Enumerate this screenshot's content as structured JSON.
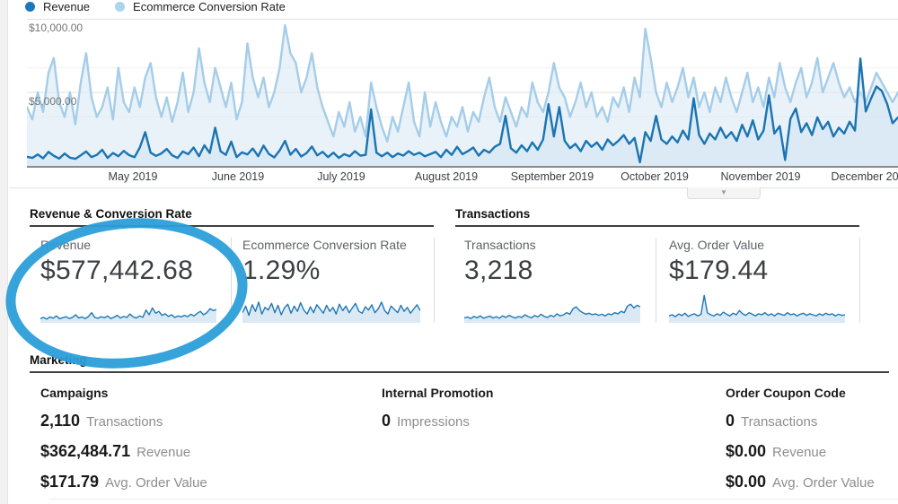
{
  "accent_colors": {
    "revenue_blue": "#1b74b1",
    "conversion_light_blue": "#a5cde9",
    "spark_fill": "#d7e7f4",
    "annotation_blue": "#2b9fd9"
  },
  "chart_collapse": {
    "icon": "chevron-down"
  },
  "chart_data": [
    {
      "id": "main",
      "type": "line",
      "title": "",
      "x_tick_labels": [
        "May 2019",
        "June 2019",
        "July 2019",
        "August 2019",
        "September 2019",
        "October 2019",
        "November 2019",
        "December 2019"
      ],
      "x_tick_pos": [
        118,
        235,
        350,
        467,
        585,
        699,
        817,
        940
      ],
      "left_axis": {
        "min": 0,
        "max": 10000,
        "tick_labels": [
          "$5,000.00",
          "$10,000.00"
        ],
        "gridlines": [
          5000,
          10000
        ]
      },
      "right_axis": {
        "min": 0,
        "max": 3,
        "gridlines": [
          1,
          2
        ]
      },
      "grid": "on",
      "legend_position": "top-left",
      "series": [
        {
          "name": "Revenue",
          "axis": "left",
          "color": "#1b74b1",
          "fill": "#cfe3f3",
          "fill_opacity": 0.55,
          "values": [
            620,
            540,
            780,
            520,
            950,
            690,
            500,
            840,
            560,
            480,
            720,
            980,
            600,
            750,
            1100,
            540,
            880,
            660,
            1020,
            730,
            590,
            1250,
            2300,
            900,
            680,
            850,
            1150,
            720,
            540,
            980,
            800,
            1250,
            660,
            1400,
            880,
            2600,
            1000,
            750,
            1650,
            600,
            920,
            780,
            1180,
            660,
            1380,
            820,
            580,
            1050,
            1700,
            760,
            1150,
            640,
            880,
            1320,
            720,
            960,
            600,
            900,
            550,
            800,
            650,
            1000,
            700,
            750,
            3850,
            900,
            650,
            900,
            600,
            850,
            700,
            1000,
            750,
            900,
            650,
            800,
            950,
            600,
            1100,
            750,
            1300,
            800,
            1000,
            1250,
            700,
            1100,
            900,
            1300,
            1500,
            3400,
            1200,
            900,
            1400,
            1000,
            1600,
            1100,
            1800,
            4200,
            2000,
            4000,
            1700,
            1200,
            1500,
            1000,
            1700,
            1300,
            1600,
            1100,
            1800,
            1400,
            1700,
            2100,
            1500,
            1900,
            250,
            2300,
            1700,
            3400,
            1800,
            1500,
            2000,
            1600,
            2400,
            1800,
            4600,
            2100,
            1500,
            2200,
            1800,
            2600,
            1900,
            2300,
            1700,
            2800,
            2000,
            3100,
            1800,
            2400,
            4800,
            2200,
            2700,
            400,
            3200,
            3900,
            2300,
            2900,
            2100,
            3300,
            2500,
            3000,
            2000,
            2600,
            2200,
            3000,
            2400,
            7300,
            3700,
            4600,
            5400,
            5100,
            4200,
            2900,
            3300
          ]
        },
        {
          "name": "Ecommerce Conversion Rate",
          "axis": "right",
          "color": "#a5cde9",
          "fill": "#dbe9f4",
          "fill_opacity": 0.6,
          "values": [
            1.2,
            0.95,
            1.5,
            1.1,
            1.9,
            2.2,
            1.3,
            1.0,
            1.5,
            0.85,
            1.7,
            2.3,
            1.4,
            1.0,
            1.2,
            1.6,
            0.95,
            2.0,
            1.3,
            1.1,
            1.6,
            1.2,
            1.8,
            2.1,
            1.4,
            1.0,
            1.4,
            0.9,
            1.3,
            1.9,
            1.1,
            1.5,
            2.4,
            1.7,
            1.3,
            2.0,
            1.6,
            1.2,
            1.7,
            0.95,
            1.3,
            2.5,
            1.8,
            1.4,
            1.8,
            1.2,
            1.5,
            2.0,
            2.87,
            2.3,
            2.1,
            1.5,
            1.8,
            2.3,
            1.6,
            1.2,
            0.9,
            0.6,
            1.1,
            0.8,
            1.3,
            0.7,
            1.0,
            0.6,
            1.7,
            1.2,
            0.8,
            0.5,
            1.0,
            0.7,
            1.2,
            1.7,
            0.9,
            0.6,
            1.5,
            0.8,
            1.3,
            0.9,
            0.6,
            1.0,
            0.8,
            1.2,
            0.7,
            1.1,
            0.9,
            1.4,
            1.8,
            1.2,
            0.9,
            1.4,
            1.1,
            0.8,
            1.2,
            1.0,
            1.7,
            1.3,
            1.1,
            1.5,
            2.1,
            1.6,
            1.4,
            1.0,
            1.3,
            1.7,
            1.2,
            1.5,
            1.0,
            1.2,
            0.9,
            1.4,
            1.2,
            1.6,
            1.1,
            1.8,
            1.4,
            2.8,
            2.2,
            1.5,
            1.2,
            1.7,
            1.3,
            1.6,
            2.0,
            1.4,
            1.8,
            1.2,
            1.5,
            1.1,
            1.6,
            1.3,
            1.8,
            1.4,
            1.1,
            1.5,
            1.9,
            1.3,
            1.6,
            1.2,
            1.8,
            1.4,
            2.1,
            1.6,
            1.3,
            1.7,
            2.0,
            1.4,
            1.7,
            2.2,
            1.5,
            1.8,
            2.1,
            1.7,
            1.4,
            1.6,
            1.3,
            1.5,
            1.3,
            1.6,
            1.9,
            1.7,
            1.5,
            1.3,
            1.5
          ]
        }
      ]
    },
    {
      "id": "spark-revenue",
      "type": "sparkline",
      "color": "#1f78b4",
      "fill": "#d7e7f4",
      "values": [
        8,
        12,
        6,
        14,
        9,
        18,
        7,
        11,
        15,
        8,
        12,
        22,
        10,
        14,
        8,
        16,
        30,
        12,
        9,
        15,
        11,
        18,
        8,
        13,
        20,
        10,
        16,
        12,
        25,
        14,
        10,
        18,
        13,
        40,
        22,
        48,
        28,
        35,
        20,
        26,
        16,
        22,
        12,
        18,
        14,
        20,
        15,
        24,
        18,
        28,
        35,
        22,
        30,
        45,
        38,
        42
      ]
    },
    {
      "id": "spark-conversion",
      "type": "sparkline",
      "color": "#1f78b4",
      "fill": "#d7e7f4",
      "values": [
        30,
        55,
        20,
        60,
        35,
        70,
        25,
        50,
        40,
        65,
        30,
        58,
        22,
        48,
        62,
        28,
        55,
        35,
        68,
        40,
        25,
        52,
        30,
        60,
        45,
        28,
        58,
        35,
        50,
        25,
        62,
        38,
        55,
        30,
        48,
        65,
        35,
        28,
        52,
        40,
        60,
        30,
        45,
        70,
        38,
        25,
        55,
        42,
        30,
        58,
        35,
        50,
        28,
        45,
        60,
        38
      ]
    },
    {
      "id": "spark-transactions",
      "type": "sparkline",
      "color": "#1f78b4",
      "fill": "#d7e7f4",
      "values": [
        10,
        14,
        8,
        16,
        11,
        18,
        9,
        13,
        17,
        10,
        15,
        9,
        18,
        12,
        20,
        14,
        10,
        16,
        12,
        22,
        15,
        11,
        19,
        14,
        24,
        16,
        12,
        20,
        15,
        26,
        18,
        22,
        30,
        24,
        45,
        52,
        38,
        30,
        24,
        28,
        22,
        26,
        20,
        24,
        18,
        26,
        22,
        30,
        26,
        35,
        30,
        55,
        62,
        48,
        58,
        52
      ]
    },
    {
      "id": "spark-aov",
      "type": "sparkline",
      "color": "#1f78b4",
      "fill": "#d7e7f4",
      "values": [
        18,
        22,
        15,
        25,
        19,
        28,
        16,
        22,
        26,
        18,
        24,
        95,
        30,
        22,
        18,
        26,
        20,
        32,
        24,
        18,
        28,
        22,
        38,
        26,
        20,
        30,
        24,
        18,
        26,
        22,
        30,
        20,
        26,
        18,
        28,
        24,
        20,
        30,
        22,
        26,
        18,
        24,
        28,
        20,
        26,
        22,
        18,
        26,
        20,
        28,
        22,
        26,
        18,
        24,
        20,
        22
      ]
    }
  ],
  "sections": {
    "revenue_conversion": {
      "title": "Revenue & Conversion Rate",
      "cards": [
        {
          "label": "Revenue",
          "value": "$577,442.68"
        },
        {
          "label": "Ecommerce Conversion Rate",
          "value": "1.29%"
        }
      ]
    },
    "transactions": {
      "title": "Transactions",
      "cards": [
        {
          "label": "Transactions",
          "value": "3,218"
        },
        {
          "label": "Avg. Order Value",
          "value": "$179.44"
        }
      ]
    },
    "marketing": {
      "title": "Marketing",
      "columns": [
        {
          "header": "Campaigns",
          "metrics": [
            {
              "value": "2,110",
              "label": "Transactions"
            },
            {
              "value": "$362,484.71",
              "label": "Revenue"
            },
            {
              "value": "$171.79",
              "label": "Avg. Order Value"
            }
          ]
        },
        {
          "header": "Internal Promotion",
          "metrics": [
            {
              "value": "0",
              "label": "Impressions"
            }
          ]
        },
        {
          "header": "Order Coupon Code",
          "metrics": [
            {
              "value": "0",
              "label": "Transactions"
            },
            {
              "value": "$0.00",
              "label": "Revenue"
            },
            {
              "value": "$0.00",
              "label": "Avg. Order Value"
            }
          ]
        }
      ]
    }
  },
  "annotation": {
    "type": "ellipse-highlight",
    "color": "#2b9fd9",
    "target": "Revenue scorecard"
  }
}
